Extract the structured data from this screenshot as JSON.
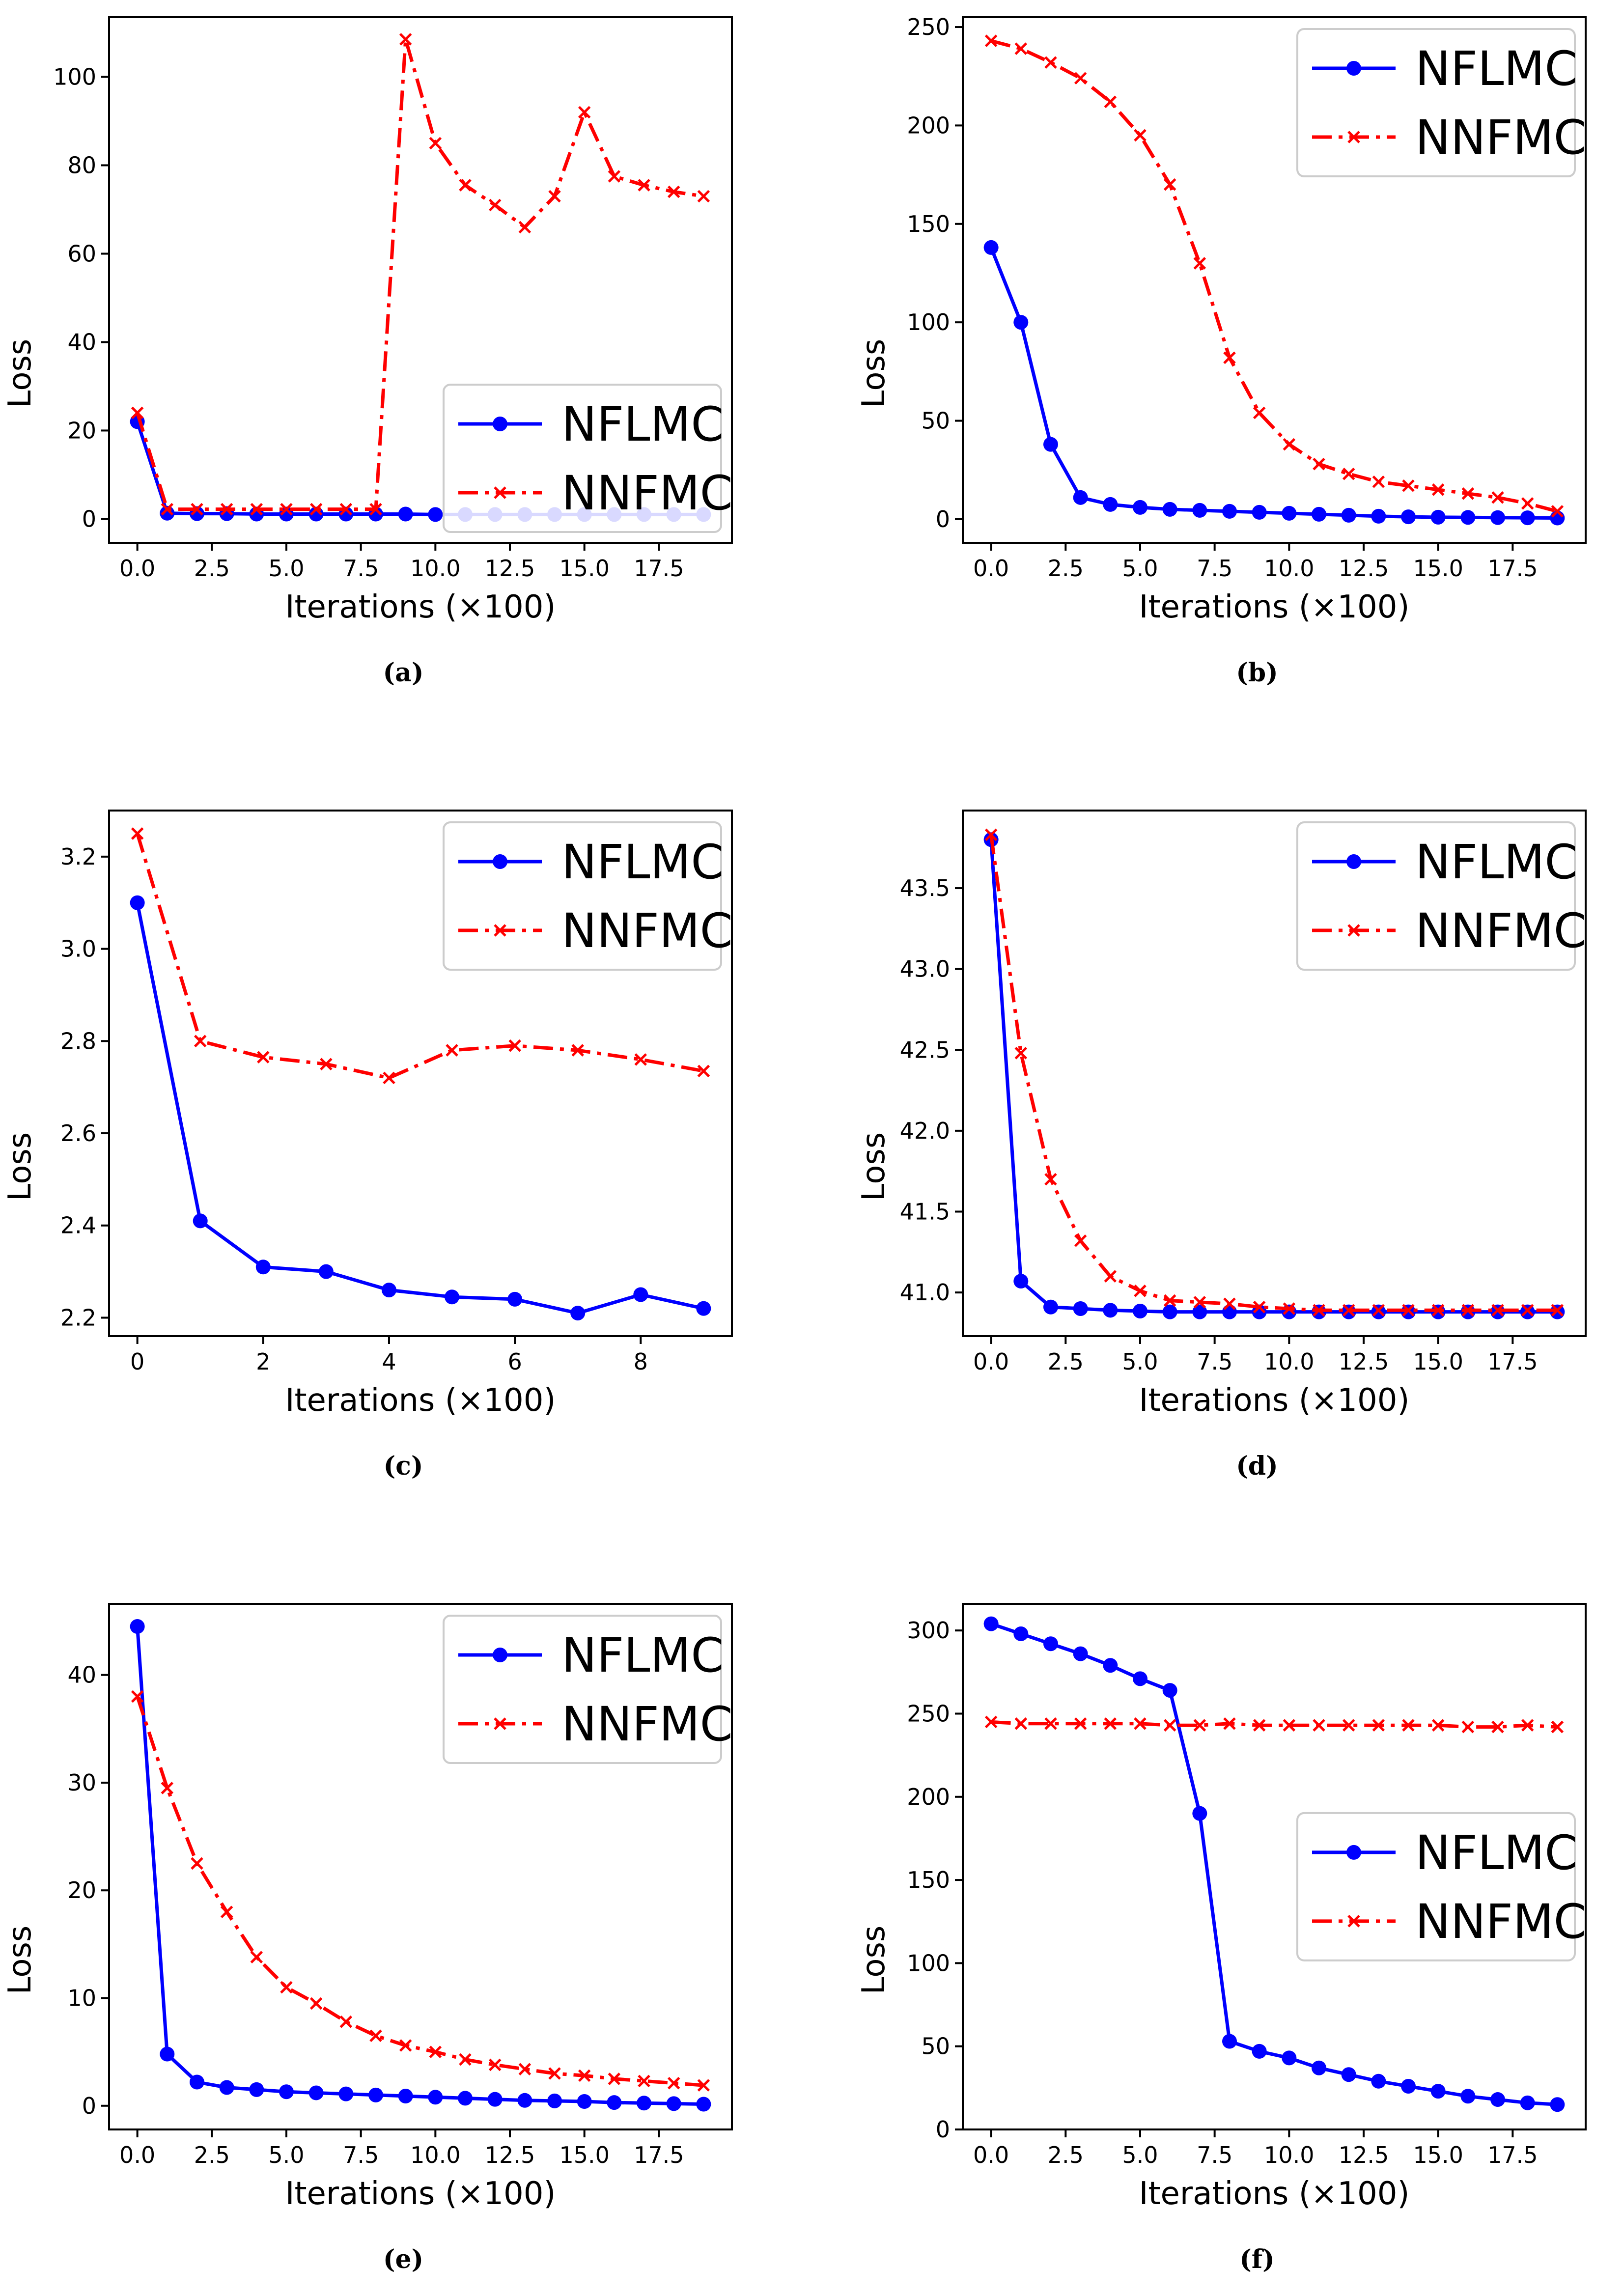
{
  "colors": {
    "nflmc": "#0000ff",
    "nnfmc": "#ff0000",
    "axis": "#000000"
  },
  "chart_data": [
    {
      "id": "a",
      "type": "line",
      "caption": "(a)",
      "xlabel": "Iterations (×100)",
      "ylabel": "Loss",
      "xlim": [
        -0.95,
        19.95
      ],
      "ylim": [
        -5.4,
        113.5
      ],
      "xticks": [
        0,
        2.5,
        5,
        7.5,
        10,
        12.5,
        15,
        17.5
      ],
      "xtick_labels": [
        "0.0",
        "2.5",
        "5.0",
        "7.5",
        "10.0",
        "12.5",
        "15.0",
        "17.5"
      ],
      "yticks": [
        0,
        20,
        40,
        60,
        80,
        100
      ],
      "ytick_labels": [
        "0",
        "20",
        "40",
        "60",
        "80",
        "100"
      ],
      "legend_position": "lower-right",
      "x": [
        0,
        1,
        2,
        3,
        4,
        5,
        6,
        7,
        8,
        9,
        10,
        11,
        12,
        13,
        14,
        15,
        16,
        17,
        18,
        19
      ],
      "series": [
        {
          "name": "NFLMC",
          "style": "solid-circle",
          "values": [
            22,
            1.3,
            1.2,
            1.2,
            1.1,
            1.1,
            1.1,
            1.1,
            1.1,
            1.1,
            1.0,
            1.0,
            1.0,
            1.0,
            1.0,
            1.0,
            1.0,
            1.0,
            1.0,
            1.0
          ]
        },
        {
          "name": "NNFMC",
          "style": "dashdot-x",
          "values": [
            24,
            2.2,
            2.2,
            2.2,
            2.2,
            2.2,
            2.2,
            2.2,
            2.2,
            108.5,
            85,
            75.5,
            71,
            66,
            73,
            92,
            77.5,
            75.5,
            74,
            73
          ]
        }
      ]
    },
    {
      "id": "b",
      "type": "line",
      "caption": "(b)",
      "xlabel": "Iterations (×100)",
      "ylabel": "Loss",
      "xlim": [
        -0.95,
        19.95
      ],
      "ylim": [
        -12,
        255
      ],
      "xticks": [
        0,
        2.5,
        5,
        7.5,
        10,
        12.5,
        15,
        17.5
      ],
      "xtick_labels": [
        "0.0",
        "2.5",
        "5.0",
        "7.5",
        "10.0",
        "12.5",
        "15.0",
        "17.5"
      ],
      "yticks": [
        0,
        50,
        100,
        150,
        200,
        250
      ],
      "ytick_labels": [
        "0",
        "50",
        "100",
        "150",
        "200",
        "250"
      ],
      "legend_position": "upper-right",
      "x": [
        0,
        1,
        2,
        3,
        4,
        5,
        6,
        7,
        8,
        9,
        10,
        11,
        12,
        13,
        14,
        15,
        16,
        17,
        18,
        19
      ],
      "series": [
        {
          "name": "NFLMC",
          "style": "solid-circle",
          "values": [
            138,
            100,
            38,
            11,
            7.5,
            6,
            5,
            4.5,
            4,
            3.5,
            3,
            2.5,
            2,
            1.5,
            1.2,
            1,
            0.9,
            0.8,
            0.7,
            0.6
          ]
        },
        {
          "name": "NNFMC",
          "style": "dashdot-x",
          "values": [
            243,
            239,
            232,
            224,
            212,
            195,
            170,
            130,
            82,
            54,
            38,
            28,
            23,
            19,
            17,
            15,
            13,
            11,
            8,
            4
          ]
        }
      ]
    },
    {
      "id": "c",
      "type": "line",
      "caption": "(c)",
      "xlabel": "Iterations (×100)",
      "ylabel": "Loss",
      "xlim": [
        -0.45,
        9.45
      ],
      "ylim": [
        2.16,
        3.3
      ],
      "xticks": [
        0,
        2,
        4,
        6,
        8
      ],
      "xtick_labels": [
        "0",
        "2",
        "4",
        "6",
        "8"
      ],
      "yticks": [
        2.2,
        2.4,
        2.6,
        2.8,
        3.0,
        3.2
      ],
      "ytick_labels": [
        "2.2",
        "2.4",
        "2.6",
        "2.8",
        "3.0",
        "3.2"
      ],
      "legend_position": "upper-right",
      "x": [
        0,
        1,
        2,
        3,
        4,
        5,
        6,
        7,
        8,
        9
      ],
      "series": [
        {
          "name": "NFLMC",
          "style": "solid-circle",
          "values": [
            3.1,
            2.41,
            2.31,
            2.3,
            2.26,
            2.245,
            2.24,
            2.21,
            2.25,
            2.22
          ]
        },
        {
          "name": "NNFMC",
          "style": "dashdot-x",
          "values": [
            3.25,
            2.8,
            2.765,
            2.75,
            2.72,
            2.78,
            2.79,
            2.78,
            2.76,
            2.735
          ]
        }
      ]
    },
    {
      "id": "d",
      "type": "line",
      "caption": "(d)",
      "xlabel": "Iterations (×100)",
      "ylabel": "Loss",
      "xlim": [
        -0.95,
        19.95
      ],
      "ylim": [
        40.73,
        43.98
      ],
      "xticks": [
        0,
        2.5,
        5,
        7.5,
        10,
        12.5,
        15,
        17.5
      ],
      "xtick_labels": [
        "0.0",
        "2.5",
        "5.0",
        "7.5",
        "10.0",
        "12.5",
        "15.0",
        "17.5"
      ],
      "yticks": [
        41.0,
        41.5,
        42.0,
        42.5,
        43.0,
        43.5
      ],
      "ytick_labels": [
        "41.0",
        "41.5",
        "42.0",
        "42.5",
        "43.0",
        "43.5"
      ],
      "legend_position": "upper-right",
      "x": [
        0,
        1,
        2,
        3,
        4,
        5,
        6,
        7,
        8,
        9,
        10,
        11,
        12,
        13,
        14,
        15,
        16,
        17,
        18,
        19
      ],
      "series": [
        {
          "name": "NFLMC",
          "style": "solid-circle",
          "values": [
            43.8,
            41.07,
            40.91,
            40.9,
            40.89,
            40.885,
            40.88,
            40.88,
            40.88,
            40.88,
            40.88,
            40.88,
            40.88,
            40.88,
            40.88,
            40.88,
            40.88,
            40.88,
            40.88,
            40.88
          ]
        },
        {
          "name": "NNFMC",
          "style": "dashdot-x",
          "values": [
            43.83,
            42.48,
            41.7,
            41.32,
            41.1,
            41.01,
            40.95,
            40.94,
            40.93,
            40.91,
            40.9,
            40.89,
            40.89,
            40.89,
            40.89,
            40.89,
            40.89,
            40.89,
            40.89,
            40.89
          ]
        }
      ]
    },
    {
      "id": "e",
      "type": "line",
      "caption": "(e)",
      "xlabel": "Iterations (×100)",
      "ylabel": "Loss",
      "xlim": [
        -0.95,
        19.95
      ],
      "ylim": [
        -2.2,
        46.6
      ],
      "xticks": [
        0,
        2.5,
        5,
        7.5,
        10,
        12.5,
        15,
        17.5
      ],
      "xtick_labels": [
        "0.0",
        "2.5",
        "5.0",
        "7.5",
        "10.0",
        "12.5",
        "15.0",
        "17.5"
      ],
      "yticks": [
        0,
        10,
        20,
        30,
        40
      ],
      "ytick_labels": [
        "0",
        "10",
        "20",
        "30",
        "40"
      ],
      "legend_position": "upper-right",
      "x": [
        0,
        1,
        2,
        3,
        4,
        5,
        6,
        7,
        8,
        9,
        10,
        11,
        12,
        13,
        14,
        15,
        16,
        17,
        18,
        19
      ],
      "series": [
        {
          "name": "NFLMC",
          "style": "solid-circle",
          "values": [
            44.5,
            4.8,
            2.2,
            1.7,
            1.5,
            1.3,
            1.2,
            1.1,
            1.0,
            0.9,
            0.8,
            0.7,
            0.6,
            0.5,
            0.45,
            0.4,
            0.3,
            0.25,
            0.2,
            0.15
          ]
        },
        {
          "name": "NNFMC",
          "style": "dashdot-x",
          "values": [
            38,
            29.5,
            22.5,
            18,
            13.8,
            11,
            9.5,
            7.8,
            6.5,
            5.6,
            5,
            4.3,
            3.8,
            3.4,
            3.0,
            2.8,
            2.5,
            2.3,
            2.1,
            1.9
          ]
        }
      ]
    },
    {
      "id": "f",
      "type": "line",
      "caption": "(f)",
      "xlabel": "Iterations (×100)",
      "ylabel": "Loss",
      "xlim": [
        -0.95,
        19.95
      ],
      "ylim": [
        0,
        316
      ],
      "xticks": [
        0,
        2.5,
        5,
        7.5,
        10,
        12.5,
        15,
        17.5
      ],
      "xtick_labels": [
        "0.0",
        "2.5",
        "5.0",
        "7.5",
        "10.0",
        "12.5",
        "15.0",
        "17.5"
      ],
      "yticks": [
        0,
        50,
        100,
        150,
        200,
        250,
        300
      ],
      "ytick_labels": [
        "0",
        "50",
        "100",
        "150",
        "200",
        "250",
        "300"
      ],
      "legend_position": "center-right",
      "x": [
        0,
        1,
        2,
        3,
        4,
        5,
        6,
        7,
        8,
        9,
        10,
        11,
        12,
        13,
        14,
        15,
        16,
        17,
        18,
        19
      ],
      "series": [
        {
          "name": "NFLMC",
          "style": "solid-circle",
          "values": [
            304,
            298,
            292,
            286,
            279,
            271,
            264,
            190,
            53,
            47,
            43,
            37,
            33,
            29,
            26,
            23,
            20,
            18,
            16,
            15
          ]
        },
        {
          "name": "NNFMC",
          "style": "dashdot-x",
          "values": [
            245,
            244,
            244,
            244,
            244,
            244,
            243,
            243,
            244,
            243,
            243,
            243,
            243,
            243,
            243,
            243,
            242,
            242,
            243,
            242
          ]
        }
      ]
    }
  ]
}
